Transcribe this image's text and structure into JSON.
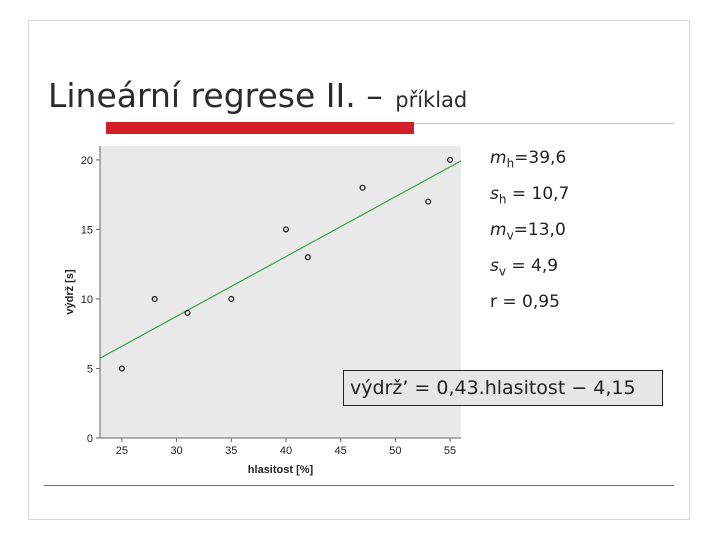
{
  "slide": {
    "title_main": "Lineární regrese II. –",
    "title_sub": "příklad"
  },
  "stats": [
    {
      "sym": "m",
      "sub": "h",
      "rest": "=39,6"
    },
    {
      "sym": "s",
      "sub": "h",
      "rest": " = 10,7"
    },
    {
      "sym": "m",
      "sub": "v",
      "rest": "=13,0"
    },
    {
      "sym": "s",
      "sub": "v",
      "rest": " = 4,9"
    },
    {
      "sym": "",
      "sub": "",
      "rest": "r = 0,95"
    }
  ],
  "equation": "výdrž’ = 0,43.hlasitost − 4,15",
  "chart_data": {
    "type": "scatter",
    "xlabel": "hlasitost [%]",
    "ylabel": "výdrž [s]",
    "xlim": [
      23,
      56
    ],
    "ylim": [
      0,
      21
    ],
    "x_ticks": [
      25,
      30,
      35,
      40,
      45,
      50,
      55
    ],
    "y_ticks": [
      0,
      5,
      10,
      15,
      20
    ],
    "points": [
      {
        "x": 25,
        "y": 5
      },
      {
        "x": 28,
        "y": 10
      },
      {
        "x": 31,
        "y": 9
      },
      {
        "x": 35,
        "y": 10
      },
      {
        "x": 40,
        "y": 15
      },
      {
        "x": 42,
        "y": 13
      },
      {
        "x": 47,
        "y": 18
      },
      {
        "x": 53,
        "y": 17
      },
      {
        "x": 55,
        "y": 20
      }
    ],
    "regression_line": {
      "slope": 0.43,
      "intercept": -4.15
    },
    "grid": false,
    "colors": {
      "background": "#e9e9e9",
      "line": "#3aa04a",
      "marker": "#222222"
    }
  }
}
